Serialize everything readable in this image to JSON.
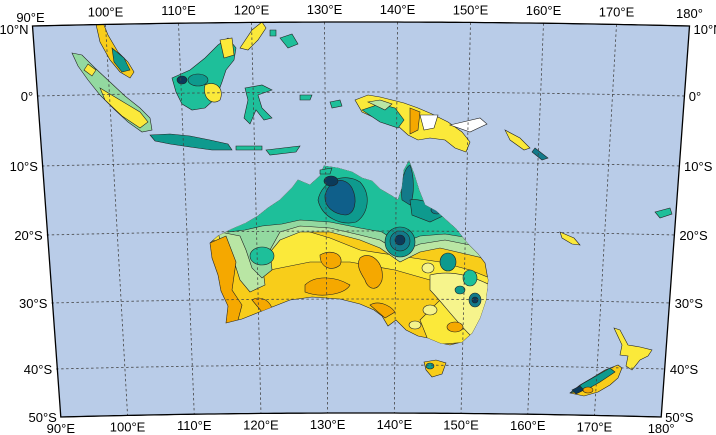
{
  "map": {
    "projection": "conic",
    "lon_range": [
      90,
      180
    ],
    "lat_range": [
      -50,
      10
    ],
    "colors": {
      "ocean": "#b9cce8",
      "orange": "#f5a800",
      "gold": "#f8cd1a",
      "yellow": "#fbe93a",
      "light_yellow": "#f6f48c",
      "pale_green": "#b9e6a4",
      "light_green": "#93d9a0",
      "teal_green": "#1ebf9a",
      "teal": "#0e9a8e",
      "dark_teal": "#137a8a",
      "blue": "#0f5f8a",
      "navy": "#0b3a5a",
      "white": "#ffffff"
    },
    "grid": "dashed",
    "top_labels": [
      "90°E",
      "100°E",
      "110°E",
      "120°E",
      "130°E",
      "140°E",
      "150°E",
      "160°E",
      "170°E",
      "180°"
    ],
    "bottom_labels": [
      "90°E",
      "100°E",
      "110°E",
      "120°E",
      "130°E",
      "140°E",
      "150°E",
      "160°E",
      "170°E",
      "180°"
    ],
    "left_labels": [
      "10°N",
      "0°",
      "10°S",
      "20°S",
      "30°S",
      "40°S",
      "50°S"
    ],
    "right_labels": [
      "10°N",
      "0°",
      "10°S",
      "20°S",
      "30°S",
      "40°S",
      "50°S"
    ]
  }
}
